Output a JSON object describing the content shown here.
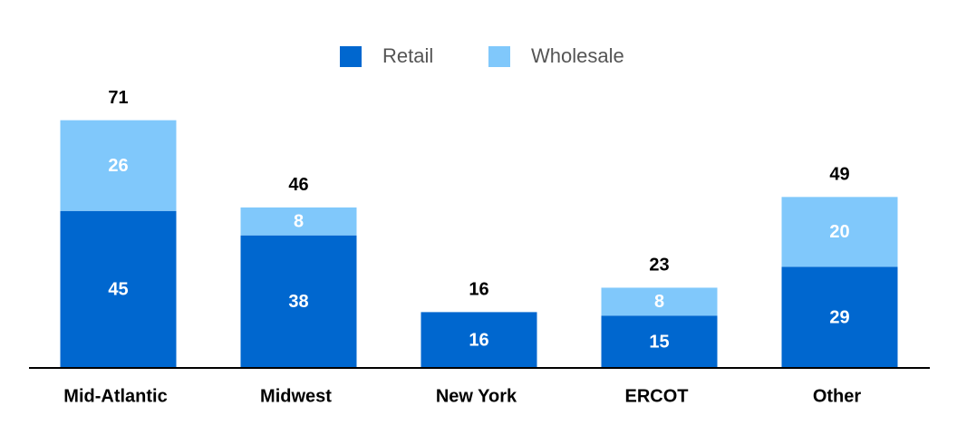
{
  "chart_data": {
    "type": "stacked-bar",
    "categories": [
      "Mid-Atlantic",
      "Midwest",
      "New York",
      "ERCOT",
      "Other"
    ],
    "series": [
      {
        "name": "Retail",
        "color": "#0067cf",
        "values": [
          45,
          38,
          16,
          15,
          29
        ]
      },
      {
        "name": "Wholesale",
        "color": "#80c8fb",
        "values": [
          26,
          8,
          null,
          8,
          20
        ]
      }
    ],
    "totals": [
      71,
      46,
      16,
      23,
      49
    ],
    "legend": "top"
  }
}
